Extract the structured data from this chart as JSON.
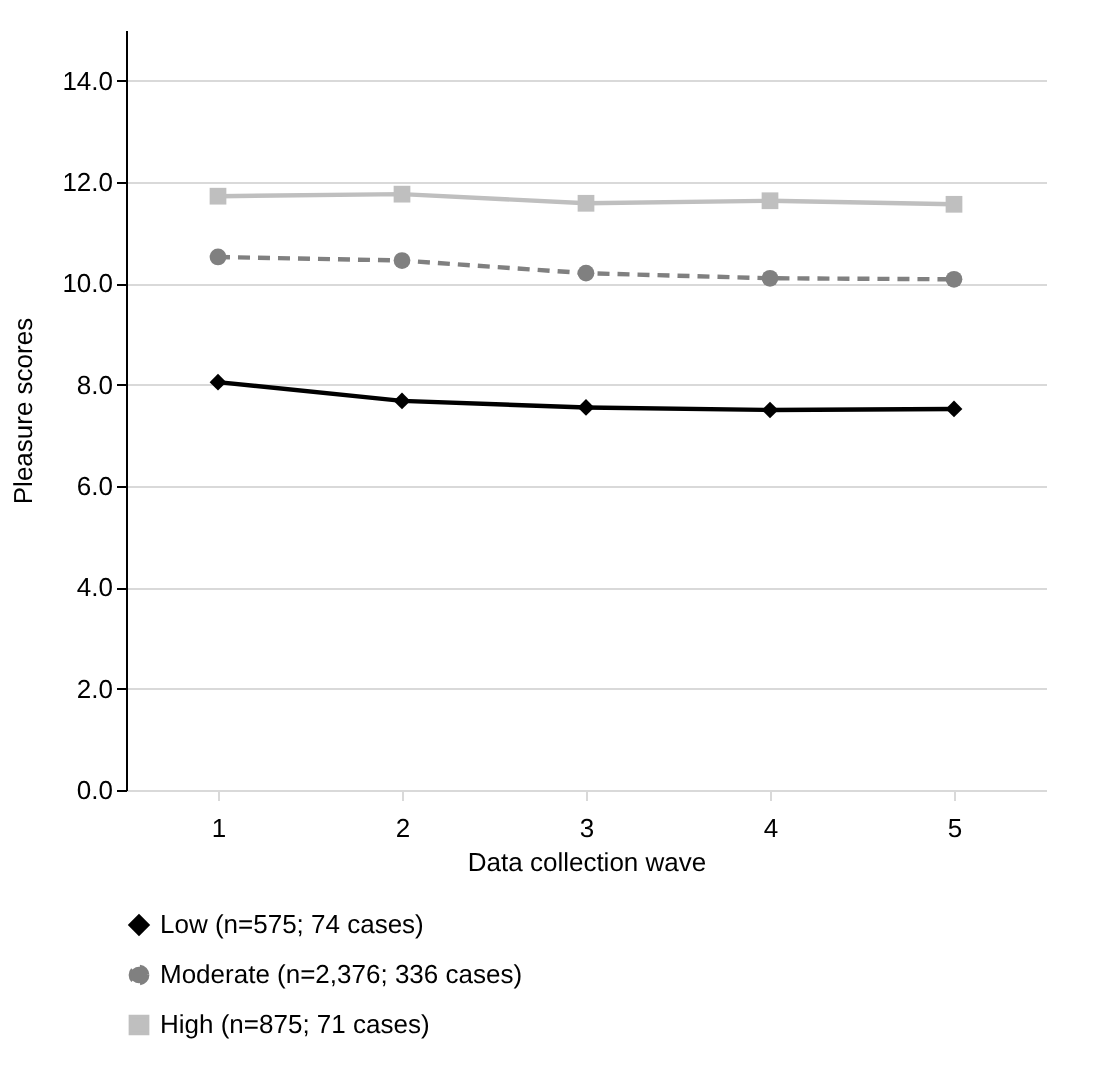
{
  "chart_data": {
    "type": "line",
    "xlabel": "Data collection wave",
    "ylabel": "Pleasure scores",
    "categories": [
      "1",
      "2",
      "3",
      "4",
      "5"
    ],
    "series": [
      {
        "name": "Low (n=575; 74 cases)",
        "color": "#000000",
        "marker": "diamond",
        "line_style": "solid",
        "values": [
          8.05,
          7.68,
          7.55,
          7.5,
          7.52
        ]
      },
      {
        "name": "Moderate (n=2,376; 336 cases)",
        "color": "#808080",
        "marker": "circle",
        "line_style": "dashed",
        "values": [
          10.52,
          10.45,
          10.2,
          10.1,
          10.08
        ]
      },
      {
        "name": "High (n=875; 71 cases)",
        "color": "#bfbfbf",
        "marker": "square",
        "line_style": "solid",
        "values": [
          11.72,
          11.76,
          11.58,
          11.63,
          11.56
        ]
      }
    ],
    "ylim": [
      0,
      15
    ],
    "yticks": [
      {
        "value": 0,
        "label": "0.0"
      },
      {
        "value": 2,
        "label": "2.0"
      },
      {
        "value": 4,
        "label": "4.0"
      },
      {
        "value": 6,
        "label": "6.0"
      },
      {
        "value": 8,
        "label": "8.0"
      },
      {
        "value": 10,
        "label": "10.0"
      },
      {
        "value": 12,
        "label": "12.0"
      },
      {
        "value": 14,
        "label": "14.0"
      }
    ],
    "grid": "y",
    "legend": "bottom"
  }
}
